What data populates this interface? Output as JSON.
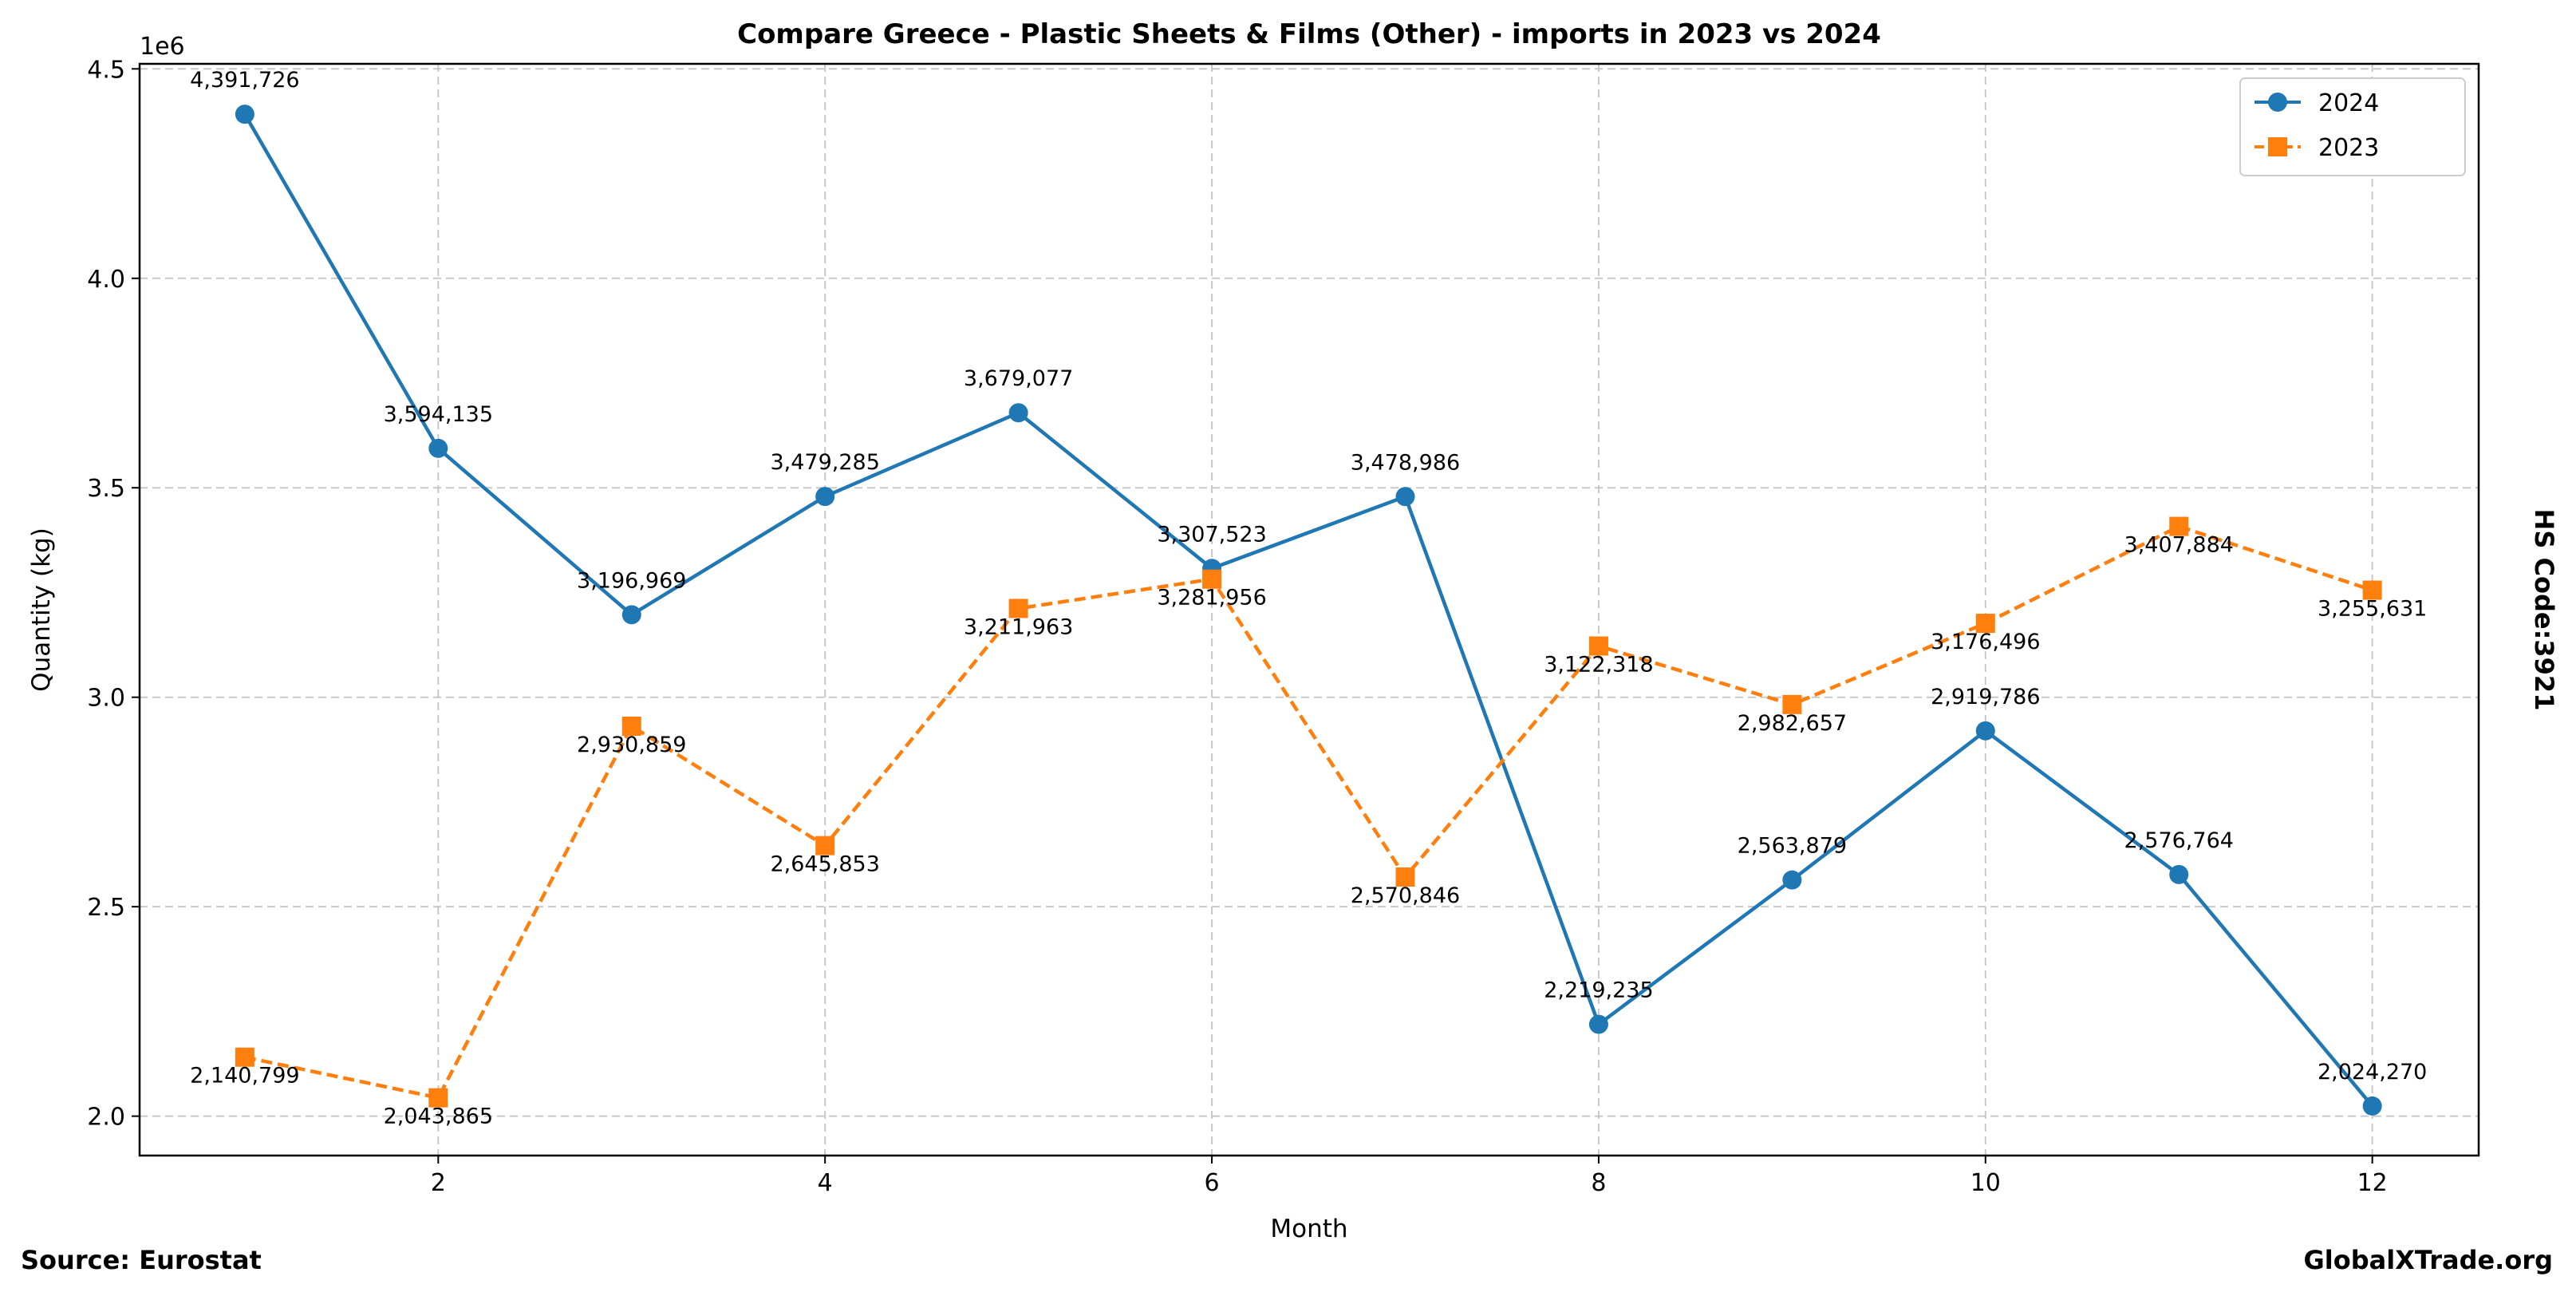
{
  "chart_data": {
    "type": "line",
    "title": "Compare Greece - Plastic Sheets & Films (Other) - imports in 2023 vs 2024",
    "xlabel": "Month",
    "ylabel": "Quantity (kg)",
    "y_offset_label": "1e6",
    "right_label": "HS Code:3921",
    "source": "Source: Eurostat",
    "brand": "GlobalXTrade.org",
    "xlim": [
      0.456,
      12.55
    ],
    "ylim": [
      1.906,
      4.512
    ],
    "x_ticks": [
      2,
      4,
      6,
      8,
      10,
      12
    ],
    "y_ticks": [
      2.0,
      2.5,
      3.0,
      3.5,
      4.0,
      4.5
    ],
    "y_tick_labels": [
      "2.0",
      "2.5",
      "3.0",
      "3.5",
      "4.0",
      "4.5"
    ],
    "grid": true,
    "legend_position": "top-right",
    "x": [
      1,
      2,
      3,
      4,
      5,
      6,
      7,
      8,
      9,
      10,
      11,
      12
    ],
    "series": [
      {
        "name": "2024",
        "color": "#1f77b4",
        "marker": "circle",
        "linestyle": "solid",
        "values": [
          4391726,
          3594135,
          3196969,
          3479285,
          3679077,
          3307523,
          3478986,
          2219235,
          2563879,
          2919786,
          2576764,
          2024270
        ],
        "labels": [
          "4,391,726",
          "3,594,135",
          "3,196,969",
          "3,479,285",
          "3,679,077",
          "3,307,523",
          "3,478,986",
          "2,219,235",
          "2,563,879",
          "2,919,786",
          "2,576,764",
          "2,024,270"
        ]
      },
      {
        "name": "2023",
        "color": "#ff7f0e",
        "marker": "square",
        "linestyle": "dashed",
        "values": [
          2140799,
          2043865,
          2930859,
          2645853,
          3211963,
          3281956,
          2570846,
          3122318,
          2982657,
          3176496,
          3407884,
          3255631
        ],
        "labels": [
          "2,140,799",
          "2,043,865",
          "2,930,859",
          "2,645,853",
          "3,211,963",
          "3,281,956",
          "2,570,846",
          "3,122,318",
          "2,982,657",
          "3,176,496",
          "3,407,884",
          "3,255,631"
        ]
      }
    ]
  }
}
